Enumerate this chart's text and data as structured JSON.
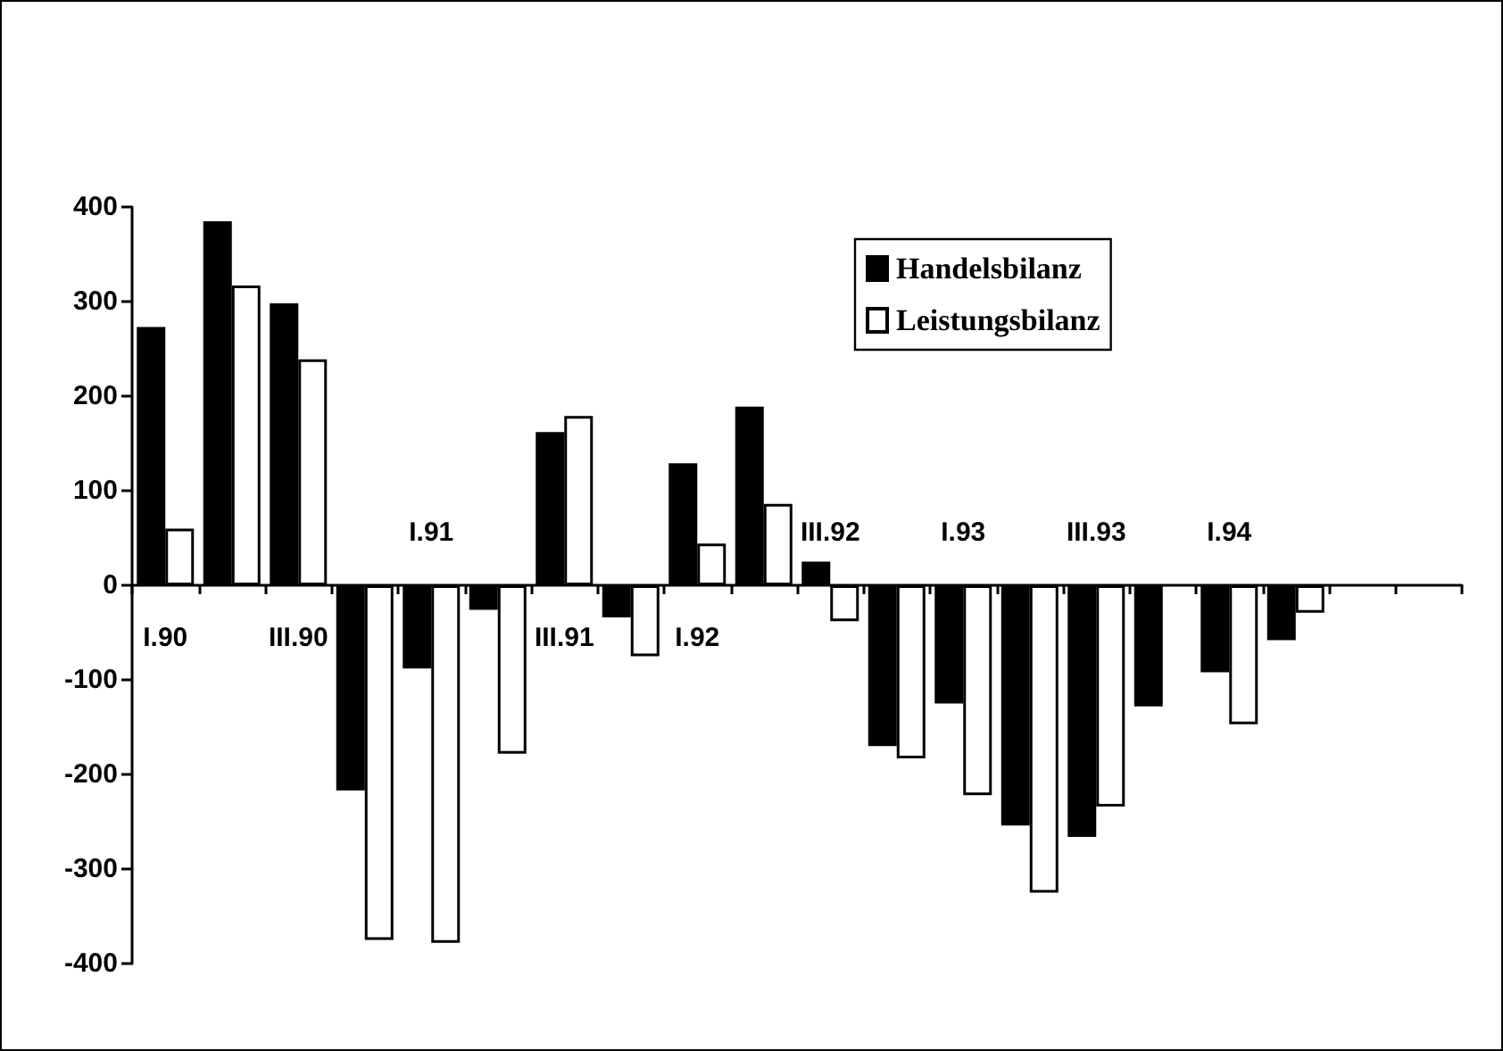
{
  "chart_data": {
    "type": "bar",
    "categories": [
      "I.90",
      null,
      "III.90",
      null,
      "I.91",
      null,
      "III.91",
      null,
      "I.92",
      null,
      "III.92",
      null,
      "I.93",
      null,
      "III.93",
      null,
      "I.94",
      null,
      null,
      null
    ],
    "series": [
      {
        "name": "Handelsbilanz",
        "color": "#000000",
        "values": [
          273,
          385,
          298,
          -217,
          -88,
          -26,
          162,
          -34,
          129,
          189,
          25,
          -170,
          -125,
          -254,
          -266,
          -128,
          -92,
          -58,
          null,
          null
        ]
      },
      {
        "name": "Leistungsbilanz",
        "color": "#ffffff",
        "values": [
          60,
          317,
          239,
          -375,
          -378,
          -178,
          179,
          -75,
          44,
          86,
          -38,
          -183,
          -222,
          -325,
          -234,
          null,
          -147,
          -29,
          null,
          null
        ]
      }
    ],
    "ylim": [
      -400,
      400
    ],
    "yticks": [
      -400,
      -300,
      -200,
      -100,
      0,
      100,
      200,
      300,
      400
    ],
    "grid": false,
    "legend": "top right"
  }
}
